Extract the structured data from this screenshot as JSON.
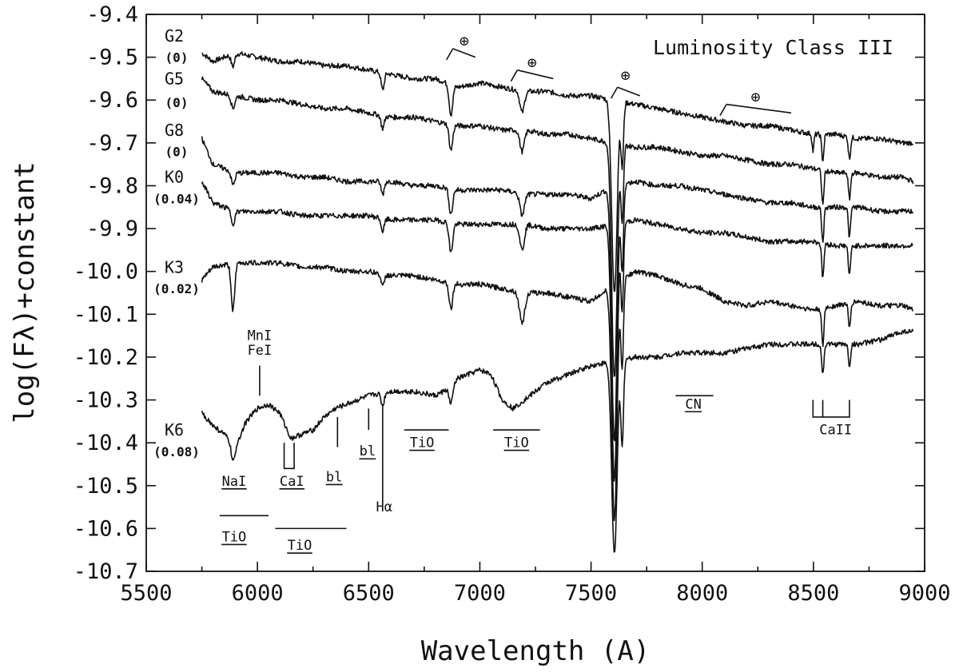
{
  "chart_data": {
    "type": "line",
    "title": "Luminosity Class III",
    "xlabel": "Wavelength (A)",
    "ylabel": "log(Fλ)+constant",
    "xlim": [
      5500,
      9000
    ],
    "ylim": [
      -10.7,
      -9.4
    ],
    "x_ticks": [
      5500,
      6000,
      6500,
      7000,
      7500,
      8000,
      8500,
      9000
    ],
    "x_tick_labels": [
      "5500",
      "6000",
      "6500",
      "7000",
      "7500",
      "8000",
      "8500",
      "9000"
    ],
    "y_ticks": [
      -9.4,
      -9.5,
      -9.6,
      -9.7,
      -9.8,
      -9.9,
      -10.0,
      -10.1,
      -10.2,
      -10.3,
      -10.4,
      -10.5,
      -10.6,
      -10.7
    ],
    "y_tick_labels": [
      "-9.4",
      "-9.5",
      "-9.6",
      "-9.7",
      "-9.8",
      "-9.9",
      "-10.0",
      "-10.1",
      "-10.2",
      "-10.3",
      "-10.4",
      "-10.5",
      "-10.6",
      "-10.7"
    ],
    "grid": false,
    "series": [
      {
        "name": "G2",
        "ebv": "(0)",
        "label_y": -9.45,
        "ebv_y": -9.5,
        "x": [
          5750,
          5800,
          5900,
          6000,
          6100,
          6200,
          6300,
          6400,
          6500,
          6600,
          6700,
          6800,
          6900,
          7000,
          7100,
          7200,
          7300,
          7400,
          7500,
          7600,
          7700,
          7800,
          7900,
          8000,
          8100,
          8200,
          8300,
          8400,
          8500,
          8600,
          8700,
          8800,
          8900,
          8950
        ],
        "y": [
          -9.49,
          -9.51,
          -9.49,
          -9.5,
          -9.51,
          -9.51,
          -9.52,
          -9.52,
          -9.53,
          -9.54,
          -9.55,
          -9.55,
          -9.57,
          -9.56,
          -9.57,
          -9.58,
          -9.58,
          -9.59,
          -9.59,
          -9.6,
          -9.61,
          -9.62,
          -9.63,
          -9.64,
          -9.65,
          -9.66,
          -9.66,
          -9.67,
          -9.68,
          -9.68,
          -9.69,
          -9.69,
          -9.7,
          -9.7
        ],
        "dips": [
          [
            5890,
            0.03,
            8
          ],
          [
            6563,
            0.04,
            7
          ],
          [
            6870,
            0.07,
            8
          ],
          [
            7190,
            0.05,
            10
          ],
          [
            7605,
            0.45,
            12
          ],
          [
            7640,
            0.15,
            6
          ],
          [
            8498,
            0.04,
            4
          ],
          [
            8542,
            0.06,
            5
          ],
          [
            8662,
            0.05,
            5
          ]
        ]
      },
      {
        "name": "G5",
        "ebv": "(0)",
        "label_y": -9.55,
        "ebv_y": -9.605,
        "x": [
          5750,
          5800,
          5900,
          6000,
          6100,
          6200,
          6300,
          6400,
          6500,
          6600,
          6700,
          6800,
          6900,
          7000,
          7100,
          7200,
          7300,
          7400,
          7500,
          7600,
          7700,
          7800,
          7900,
          8000,
          8100,
          8200,
          8300,
          8400,
          8500,
          8600,
          8700,
          8800,
          8900,
          8950
        ],
        "y": [
          -9.55,
          -9.58,
          -9.59,
          -9.6,
          -9.6,
          -9.61,
          -9.62,
          -9.62,
          -9.63,
          -9.64,
          -9.64,
          -9.65,
          -9.66,
          -9.66,
          -9.67,
          -9.67,
          -9.68,
          -9.68,
          -9.69,
          -9.7,
          -9.71,
          -9.71,
          -9.72,
          -9.73,
          -9.73,
          -9.74,
          -9.75,
          -9.75,
          -9.76,
          -9.77,
          -9.77,
          -9.78,
          -9.78,
          -9.79
        ],
        "dips": [
          [
            5890,
            0.03,
            8
          ],
          [
            6563,
            0.03,
            7
          ],
          [
            6870,
            0.06,
            8
          ],
          [
            7190,
            0.05,
            10
          ],
          [
            7605,
            0.55,
            12
          ],
          [
            7640,
            0.18,
            6
          ],
          [
            8542,
            0.08,
            5
          ],
          [
            8662,
            0.06,
            5
          ]
        ]
      },
      {
        "name": "G8",
        "ebv": "(0)",
        "label_y": -9.67,
        "ebv_y": -9.72,
        "x": [
          5750,
          5800,
          5900,
          6000,
          6100,
          6200,
          6300,
          6400,
          6500,
          6600,
          6700,
          6800,
          6900,
          7000,
          7100,
          7200,
          7300,
          7400,
          7500,
          7600,
          7700,
          7800,
          7900,
          8000,
          8100,
          8200,
          8300,
          8400,
          8500,
          8600,
          8700,
          8800,
          8900,
          8950
        ],
        "y": [
          -9.69,
          -9.75,
          -9.77,
          -9.77,
          -9.77,
          -9.78,
          -9.78,
          -9.79,
          -9.79,
          -9.79,
          -9.8,
          -9.8,
          -9.81,
          -9.81,
          -9.81,
          -9.82,
          -9.82,
          -9.82,
          -9.83,
          -9.8,
          -9.79,
          -9.8,
          -9.8,
          -9.81,
          -9.82,
          -9.83,
          -9.84,
          -9.84,
          -9.85,
          -9.85,
          -9.85,
          -9.86,
          -9.86,
          -9.86
        ],
        "dips": [
          [
            5890,
            0.03,
            8
          ],
          [
            6563,
            0.03,
            7
          ],
          [
            6870,
            0.06,
            8
          ],
          [
            7190,
            0.05,
            10
          ],
          [
            7605,
            0.6,
            12
          ],
          [
            7640,
            0.2,
            6
          ],
          [
            8542,
            0.08,
            5
          ],
          [
            8662,
            0.07,
            5
          ]
        ]
      },
      {
        "name": "K0",
        "ebv": "(0.04)",
        "label_y": -9.78,
        "ebv_y": -9.83,
        "x": [
          5750,
          5800,
          5900,
          6000,
          6100,
          6200,
          6300,
          6400,
          6500,
          6600,
          6700,
          6800,
          6900,
          7000,
          7100,
          7200,
          7300,
          7400,
          7500,
          7600,
          7700,
          7800,
          7900,
          8000,
          8100,
          8200,
          8300,
          8400,
          8500,
          8600,
          8700,
          8800,
          8900,
          8950
        ],
        "y": [
          -9.79,
          -9.84,
          -9.86,
          -9.86,
          -9.86,
          -9.87,
          -9.87,
          -9.87,
          -9.87,
          -9.88,
          -9.88,
          -9.88,
          -9.89,
          -9.89,
          -9.89,
          -9.89,
          -9.9,
          -9.9,
          -9.9,
          -9.89,
          -9.88,
          -9.89,
          -9.9,
          -9.91,
          -9.91,
          -9.92,
          -9.93,
          -9.93,
          -9.93,
          -9.94,
          -9.94,
          -9.94,
          -9.94,
          -9.94
        ],
        "dips": [
          [
            5890,
            0.03,
            8
          ],
          [
            6563,
            0.03,
            7
          ],
          [
            6870,
            0.07,
            8
          ],
          [
            7190,
            0.06,
            10
          ],
          [
            7605,
            0.6,
            12
          ],
          [
            7640,
            0.2,
            6
          ],
          [
            8542,
            0.08,
            5
          ],
          [
            8662,
            0.07,
            5
          ]
        ]
      },
      {
        "name": "K3",
        "ebv": "(0.02)",
        "label_y": -9.99,
        "ebv_y": -10.04,
        "x": [
          5750,
          5800,
          5900,
          6000,
          6100,
          6200,
          6300,
          6400,
          6500,
          6600,
          6700,
          6800,
          6900,
          7000,
          7100,
          7200,
          7300,
          7400,
          7500,
          7600,
          7700,
          7800,
          7900,
          8000,
          8100,
          8200,
          8300,
          8400,
          8500,
          8600,
          8700,
          8800,
          8900,
          8950
        ],
        "y": [
          -10.02,
          -9.99,
          -9.98,
          -9.98,
          -9.98,
          -9.99,
          -9.99,
          -10.0,
          -10.0,
          -10.01,
          -10.01,
          -10.02,
          -10.03,
          -10.03,
          -10.04,
          -10.05,
          -10.05,
          -10.06,
          -10.07,
          -10.03,
          -10.0,
          -10.01,
          -10.03,
          -10.04,
          -10.07,
          -10.08,
          -10.07,
          -10.08,
          -10.09,
          -10.08,
          -10.07,
          -10.08,
          -10.08,
          -10.09
        ],
        "dips": [
          [
            5890,
            0.11,
            8
          ],
          [
            6563,
            0.03,
            7
          ],
          [
            6870,
            0.06,
            8
          ],
          [
            7190,
            0.07,
            12
          ],
          [
            7605,
            0.55,
            12
          ],
          [
            7640,
            0.2,
            6
          ],
          [
            8542,
            0.09,
            5
          ],
          [
            8662,
            0.06,
            5
          ]
        ]
      },
      {
        "name": "K6",
        "ebv": "(0.08)",
        "label_y": -10.37,
        "ebv_y": -10.42,
        "x": [
          5750,
          5800,
          5850,
          5900,
          5950,
          6000,
          6050,
          6100,
          6150,
          6200,
          6250,
          6300,
          6350,
          6400,
          6500,
          6600,
          6700,
          6800,
          6870,
          6900,
          7000,
          7050,
          7100,
          7150,
          7200,
          7300,
          7400,
          7500,
          7600,
          7700,
          7800,
          7900,
          8000,
          8100,
          8200,
          8300,
          8400,
          8500,
          8600,
          8700,
          8800,
          8900,
          8950
        ],
        "y": [
          -10.33,
          -10.36,
          -10.38,
          -10.41,
          -10.35,
          -10.32,
          -10.31,
          -10.33,
          -10.39,
          -10.38,
          -10.37,
          -10.34,
          -10.32,
          -10.31,
          -10.29,
          -10.28,
          -10.28,
          -10.29,
          -10.27,
          -10.25,
          -10.23,
          -10.24,
          -10.3,
          -10.32,
          -10.3,
          -10.26,
          -10.24,
          -10.22,
          -10.21,
          -10.2,
          -10.2,
          -10.19,
          -10.19,
          -10.19,
          -10.18,
          -10.17,
          -10.17,
          -10.17,
          -10.17,
          -10.17,
          -10.16,
          -10.14,
          -10.14
        ],
        "dips": [
          [
            5890,
            0.04,
            8
          ],
          [
            6563,
            0.03,
            7
          ],
          [
            6870,
            0.04,
            8
          ],
          [
            7605,
            0.45,
            12
          ],
          [
            7640,
            0.2,
            6
          ],
          [
            8542,
            0.07,
            5
          ],
          [
            8662,
            0.05,
            5
          ]
        ]
      }
    ],
    "telluric_marks": [
      {
        "label": "⊕",
        "x1": 6850,
        "y1": -9.48,
        "x2": 6980,
        "y2": -9.5,
        "lab_x": 6930,
        "lab_y": -9.46
      },
      {
        "label": "⊕",
        "x1": 7140,
        "y1": -9.53,
        "x2": 7330,
        "y2": -9.55,
        "lab_x": 7235,
        "lab_y": -9.51
      },
      {
        "label": "⊕",
        "x1": 7590,
        "y1": -9.57,
        "x2": 7720,
        "y2": -9.59,
        "lab_x": 7655,
        "lab_y": -9.54
      },
      {
        "label": "⊕",
        "x1": 8080,
        "y1": -9.61,
        "x2": 8400,
        "y2": -9.63,
        "lab_x": 8240,
        "lab_y": -9.59
      }
    ],
    "annotations": [
      {
        "text": "MnI",
        "x": 6010,
        "y": -10.16
      },
      {
        "text": "FeI",
        "x": 6010,
        "y": -10.195
      },
      {
        "text": "NaI",
        "x": 5895,
        "y": -10.5,
        "underline": true
      },
      {
        "text": "CaI",
        "x": 6155,
        "y": -10.5,
        "underline": true
      },
      {
        "text": "bl",
        "x": 6345,
        "y": -10.49,
        "underline": true
      },
      {
        "text": "bl",
        "x": 6495,
        "y": -10.43,
        "underline": true
      },
      {
        "text": "Hα",
        "x": 6570,
        "y": -10.56
      },
      {
        "text": "TiO",
        "x": 6740,
        "y": -10.41,
        "underline": true
      },
      {
        "text": "TiO",
        "x": 7165,
        "y": -10.41,
        "underline": true
      },
      {
        "text": "TiO",
        "x": 5895,
        "y": -10.63,
        "underline": true
      },
      {
        "text": "TiO",
        "x": 6190,
        "y": -10.65,
        "underline": true
      },
      {
        "text": "CN",
        "x": 7960,
        "y": -10.32,
        "underline": true
      },
      {
        "text": "CaII",
        "x": 8600,
        "y": -10.38
      }
    ]
  }
}
